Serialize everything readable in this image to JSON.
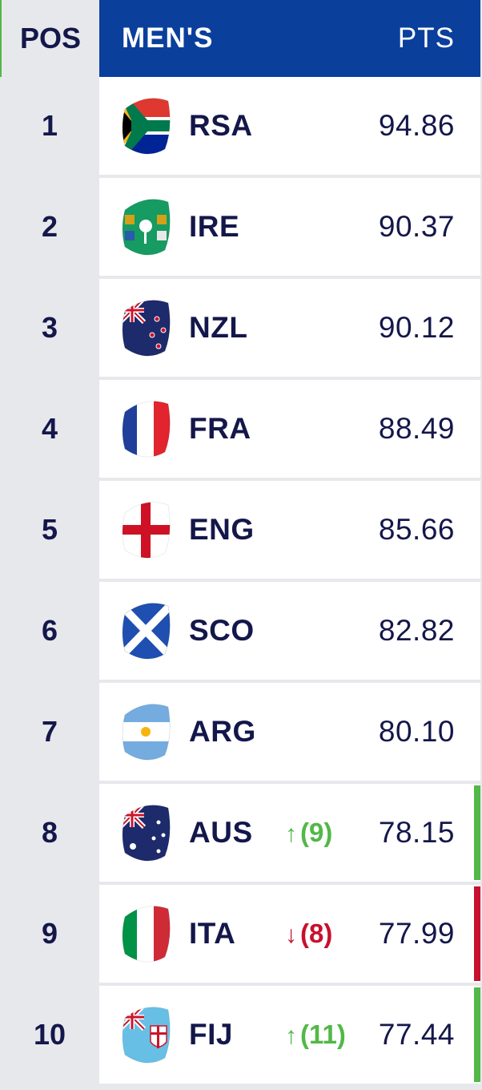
{
  "header": {
    "pos_label": "POS",
    "title": "MEN'S",
    "pts_label": "PTS"
  },
  "colors": {
    "navy": "#14174a",
    "header_blue": "#0a3f9c",
    "up": "#52b847",
    "down": "#c8102e"
  },
  "rows": [
    {
      "pos": "1",
      "code": "RSA",
      "pts": "94.86",
      "flag": "rsa-flag-icon",
      "move_arrow": "",
      "move_value": "",
      "trend": "none"
    },
    {
      "pos": "2",
      "code": "IRE",
      "pts": "90.37",
      "flag": "ireland-flag-icon",
      "move_arrow": "",
      "move_value": "",
      "trend": "none"
    },
    {
      "pos": "3",
      "code": "NZL",
      "pts": "90.12",
      "flag": "new-zealand-flag-icon",
      "move_arrow": "",
      "move_value": "",
      "trend": "none"
    },
    {
      "pos": "4",
      "code": "FRA",
      "pts": "88.49",
      "flag": "france-flag-icon",
      "move_arrow": "",
      "move_value": "",
      "trend": "none"
    },
    {
      "pos": "5",
      "code": "ENG",
      "pts": "85.66",
      "flag": "england-flag-icon",
      "move_arrow": "",
      "move_value": "",
      "trend": "none"
    },
    {
      "pos": "6",
      "code": "SCO",
      "pts": "82.82",
      "flag": "scotland-flag-icon",
      "move_arrow": "",
      "move_value": "",
      "trend": "none"
    },
    {
      "pos": "7",
      "code": "ARG",
      "pts": "80.10",
      "flag": "argentina-flag-icon",
      "move_arrow": "",
      "move_value": "",
      "trend": "none"
    },
    {
      "pos": "8",
      "code": "AUS",
      "pts": "78.15",
      "flag": "australia-flag-icon",
      "move_arrow": "↑",
      "move_value": "(9)",
      "trend": "up"
    },
    {
      "pos": "9",
      "code": "ITA",
      "pts": "77.99",
      "flag": "italy-flag-icon",
      "move_arrow": "↓",
      "move_value": "(8)",
      "trend": "down"
    },
    {
      "pos": "10",
      "code": "FIJ",
      "pts": "77.44",
      "flag": "fiji-flag-icon",
      "move_arrow": "↑",
      "move_value": "(11)",
      "trend": "up"
    }
  ]
}
